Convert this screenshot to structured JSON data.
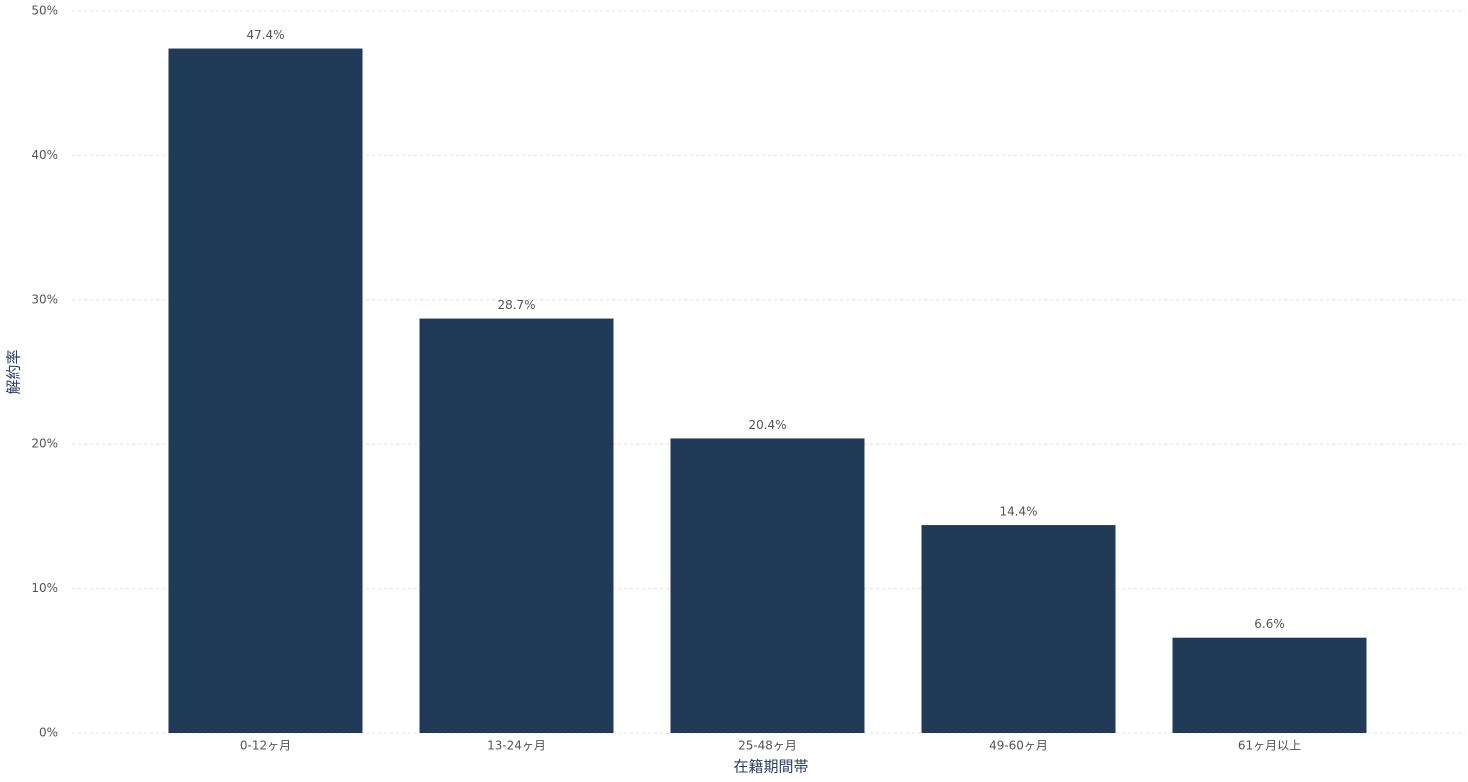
{
  "chart_data": {
    "type": "bar",
    "x_label": "在籍期間帯",
    "y_label": "解約率",
    "categories": [
      "0-12ヶ月",
      "13-24ヶ月",
      "25-48ヶ月",
      "49-60ヶ月",
      "61ヶ月以上"
    ],
    "values": [
      47.4,
      28.7,
      20.4,
      14.4,
      6.6
    ],
    "value_labels": [
      "47.4%",
      "28.7%",
      "20.4%",
      "14.4%",
      "6.6%"
    ],
    "color": "#213a57",
    "ylim": [
      0,
      50
    ],
    "yticks": [
      {
        "value": 0,
        "label": "0%"
      },
      {
        "value": 10,
        "label": "10%"
      },
      {
        "value": 20,
        "label": "20%"
      },
      {
        "value": 30,
        "label": "30%"
      },
      {
        "value": 40,
        "label": "40%"
      },
      {
        "value": 50,
        "label": "50%"
      }
    ],
    "grid": true
  }
}
